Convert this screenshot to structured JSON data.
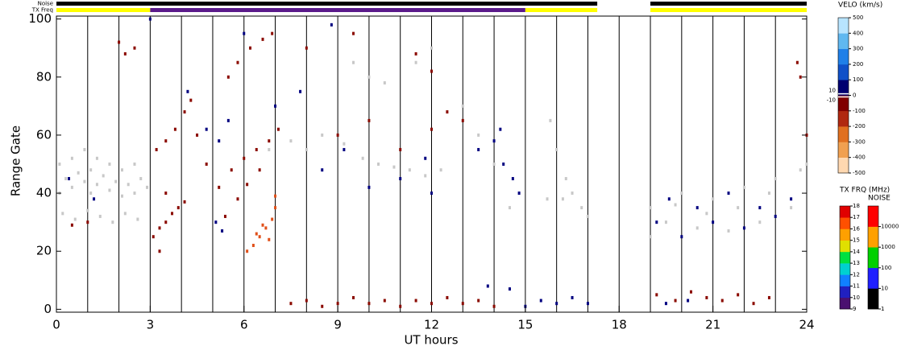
{
  "chart_data": {
    "type": "scatter",
    "y_label": "Range Gate",
    "x_label": "UT hours",
    "xlim": [
      0,
      24
    ],
    "xticks": [
      0,
      3,
      6,
      9,
      12,
      15,
      18,
      21,
      24
    ],
    "ylim": [
      -1,
      101
    ],
    "yticks": [
      0,
      20,
      40,
      60,
      80,
      100
    ],
    "xgrid": [
      1,
      2,
      3,
      4,
      5,
      6,
      7,
      8,
      9,
      10,
      11,
      12,
      13,
      14,
      15,
      16,
      17,
      18,
      19,
      20,
      21,
      22,
      23
    ],
    "series": [
      {
        "color": "#c8c8c8",
        "x": [
          0.1,
          0.1,
          0.3,
          0.5,
          0.5,
          0.7,
          0.9,
          0.9,
          1.1,
          1.1,
          1.3,
          1.3,
          1.5,
          1.7,
          1.7,
          1.9,
          2.1,
          2.1,
          2.3,
          2.5,
          2.5,
          2.7,
          2.9,
          0.2,
          0.6,
          1,
          1.4,
          1.8,
          2.2,
          2.6,
          6.8,
          7.5,
          8,
          8.5,
          9.2,
          9.8,
          10.3,
          10.8,
          11.3,
          11.8,
          12.3,
          9.5,
          10,
          10.5,
          11.5,
          12,
          13,
          13.5,
          14,
          14.5,
          15.8,
          16,
          16.3,
          16.5,
          16.8,
          17,
          15.7,
          16.2,
          19,
          19,
          19.5,
          20,
          20.5,
          21,
          21.5,
          22,
          22.5,
          23,
          23.5,
          23.8,
          24,
          22.8,
          21.8,
          20.8,
          19.8
        ],
        "y": [
          40,
          50,
          45,
          42,
          52,
          47,
          44,
          55,
          40,
          48,
          43,
          52,
          46,
          41,
          50,
          44,
          39,
          48,
          43,
          40,
          50,
          45,
          42,
          33,
          31,
          34,
          32,
          30,
          33,
          31,
          55,
          58,
          55,
          60,
          57,
          52,
          50,
          49,
          48,
          46,
          48,
          85,
          80,
          78,
          85,
          90,
          70,
          60,
          50,
          35,
          65,
          55,
          45,
          40,
          35,
          32,
          38,
          38,
          35,
          25,
          30,
          40,
          28,
          38,
          27,
          42,
          30,
          45,
          35,
          48,
          50,
          40,
          35,
          33,
          36
        ]
      },
      {
        "color": "#8b0a00",
        "x": [
          3.1,
          3.3,
          3.5,
          3.7,
          3.9,
          4.1,
          3.5,
          3.2,
          3.5,
          3.8,
          4.1,
          4.3,
          4.5,
          4.8,
          5.2,
          5.6,
          6,
          6.4,
          6.8,
          7.1,
          5.5,
          5.8,
          6.2,
          6.6,
          6.9,
          5.4,
          5.8,
          6.1,
          6.5,
          9,
          10,
          11,
          12,
          12.5,
          13,
          11.5,
          12,
          8,
          9.5,
          2.2,
          2.5,
          2,
          7.5,
          8,
          8.5,
          9,
          9.5,
          10,
          10.5,
          11,
          11.5,
          12,
          12.5,
          13,
          13.5,
          14,
          19.2,
          19.8,
          20.3,
          20.8,
          21.3,
          21.8,
          22.3,
          22.8,
          23.7,
          23.8,
          24,
          3.3,
          1,
          0.5
        ],
        "y": [
          25,
          28,
          30,
          33,
          35,
          37,
          40,
          55,
          58,
          62,
          68,
          72,
          60,
          50,
          42,
          48,
          52,
          55,
          58,
          62,
          80,
          85,
          90,
          93,
          95,
          32,
          38,
          43,
          48,
          60,
          65,
          55,
          62,
          68,
          65,
          88,
          82,
          90,
          95,
          88,
          90,
          92,
          2,
          3,
          1,
          2,
          4,
          2,
          3,
          1,
          3,
          2,
          4,
          2,
          3,
          1,
          5,
          3,
          6,
          4,
          3,
          5,
          2,
          4,
          85,
          80,
          60,
          20,
          30,
          29
        ]
      },
      {
        "color": "#000080",
        "x": [
          4.2,
          4.8,
          5.2,
          5.1,
          5.3,
          5.5,
          7,
          7.8,
          8.5,
          9.2,
          10,
          11,
          12,
          11.8,
          13.5,
          14,
          14.3,
          14.6,
          14.8,
          14.2,
          15,
          15.5,
          16,
          16.5,
          17,
          13.8,
          14.5,
          19.2,
          19.6,
          20,
          20.5,
          21,
          21.5,
          22,
          22.5,
          23,
          23.5,
          19.5,
          20.2,
          6,
          8.8,
          3,
          0.4,
          1.2
        ],
        "y": [
          75,
          62,
          58,
          30,
          27,
          65,
          70,
          75,
          48,
          55,
          42,
          45,
          40,
          52,
          55,
          58,
          50,
          45,
          40,
          62,
          1,
          3,
          2,
          4,
          2,
          8,
          7,
          30,
          38,
          25,
          35,
          30,
          40,
          28,
          35,
          32,
          38,
          2,
          3,
          95,
          98,
          100,
          45,
          38
        ]
      },
      {
        "color": "#e0501a",
        "x": [
          6.1,
          6.3,
          6.5,
          6.7,
          6.9,
          7,
          6.4,
          6.8,
          6.6,
          7
        ],
        "y": [
          20,
          22,
          25,
          28,
          31,
          35,
          26,
          24,
          29,
          39
        ]
      }
    ],
    "status_bars": [
      {
        "label": "Noise",
        "segments": [
          {
            "start": 0,
            "end": 17.3,
            "color": "#000000"
          },
          {
            "start": 19,
            "end": 24,
            "color": "#000000"
          }
        ]
      },
      {
        "label": "TX Freq",
        "segments": [
          {
            "start": 0,
            "end": 3,
            "color": "#ffff00"
          },
          {
            "start": 3,
            "end": 15,
            "color": "#5a1a8a"
          },
          {
            "start": 15,
            "end": 17.3,
            "color": "#ffff00"
          },
          {
            "start": 19,
            "end": 24,
            "color": "#ffff00"
          }
        ]
      }
    ],
    "colorbars": [
      {
        "title": "VELO (km/s)",
        "lim": [
          -500,
          500
        ],
        "ticks": [
          500,
          400,
          300,
          200,
          100,
          0,
          -100,
          -200,
          -300,
          -400,
          -500
        ],
        "extra_ticks": [
          10,
          -10
        ],
        "colors": [
          "#ffd8b0",
          "#f0a050",
          "#e07020",
          "#b02810",
          "#800000",
          "#000070",
          "#1050c8",
          "#2080e8",
          "#60b8f0",
          "#b8e4ff"
        ]
      },
      {
        "title": "TX FRQ (MHz)",
        "lim": [
          9,
          18
        ],
        "ticks": [
          9,
          10,
          11,
          12,
          13,
          14,
          15,
          16,
          17,
          18
        ],
        "colors": [
          "#4a1070",
          "#2020c0",
          "#1080ff",
          "#00d0d0",
          "#00e040",
          "#e0e000",
          "#ffa000",
          "#ff5000",
          "#e00000"
        ]
      },
      {
        "title": "NOISE",
        "lim": [
          1,
          100000
        ],
        "log": true,
        "ticks": [
          1,
          10,
          100,
          1000,
          10000
        ],
        "colors": [
          "#000000",
          "#2020ff",
          "#00d000",
          "#ffa000",
          "#ff0000"
        ]
      }
    ]
  }
}
